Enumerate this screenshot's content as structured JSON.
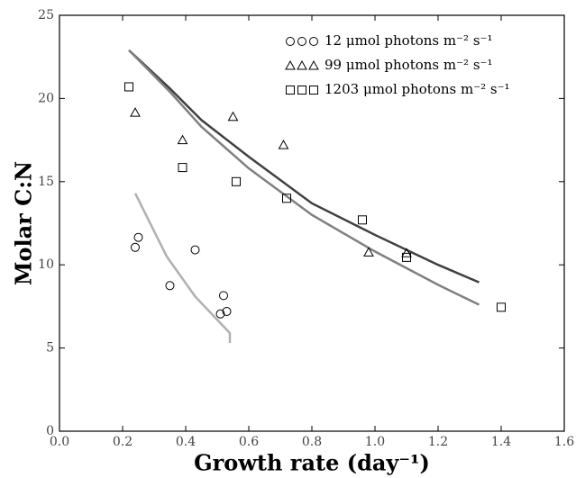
{
  "chart_data": {
    "type": "scatter",
    "xlabel": "Growth rate (day⁻¹)",
    "ylabel": "Molar C:N",
    "xlim": [
      0,
      1.6
    ],
    "ylim": [
      0,
      25
    ],
    "xticks": [
      {
        "value": 0,
        "label": "0.0"
      },
      0.2,
      0.4,
      0.6,
      0.8,
      {
        "value": 1,
        "label": "1.0"
      },
      1.2,
      1.4,
      1.6
    ],
    "yticks": [
      0,
      5,
      10,
      15,
      20,
      25
    ],
    "legend": "upper right",
    "series": [
      {
        "name": "12 μmol photons m⁻² s⁻¹",
        "marker": "circle",
        "color": "#000000",
        "x": [
          0.24,
          0.25,
          0.35,
          0.43,
          0.52,
          0.51,
          0.53
        ],
        "values": [
          11.05,
          11.65,
          8.75,
          10.9,
          8.15,
          7.05,
          7.2
        ]
      },
      {
        "name": "99 μmol photons m⁻² s⁻¹",
        "marker": "triangle",
        "color": "#000000",
        "x": [
          0.24,
          0.39,
          0.55,
          0.71,
          0.98,
          1.1
        ],
        "values": [
          19.15,
          17.5,
          18.9,
          17.2,
          10.75,
          10.7
        ]
      },
      {
        "name": "1203 μmol photons m⁻² s⁻¹",
        "marker": "square",
        "color": "#000000",
        "x": [
          0.22,
          0.39,
          0.56,
          0.72,
          0.96,
          1.1,
          1.4
        ],
        "values": [
          20.7,
          15.85,
          15.0,
          14.0,
          12.7,
          10.45,
          7.45
        ]
      }
    ],
    "lines": [
      {
        "color": "#b0b0b0",
        "x": [
          0.24,
          0.34,
          0.43,
          0.54,
          0.54
        ],
        "values": [
          14.3,
          10.5,
          8.1,
          5.9,
          5.3
        ]
      },
      {
        "color": "#404040",
        "x": [
          0.22,
          0.35,
          0.45,
          0.6,
          0.8,
          1.0,
          1.2,
          1.33
        ],
        "values": [
          22.9,
          20.6,
          18.7,
          16.5,
          13.7,
          11.8,
          10.0,
          8.95
        ]
      },
      {
        "color": "#808080",
        "x": [
          0.22,
          0.35,
          0.45,
          0.6,
          0.8,
          1.0,
          1.2,
          1.33
        ],
        "values": [
          22.9,
          20.4,
          18.3,
          15.8,
          13.0,
          10.8,
          8.8,
          7.6
        ]
      }
    ]
  }
}
